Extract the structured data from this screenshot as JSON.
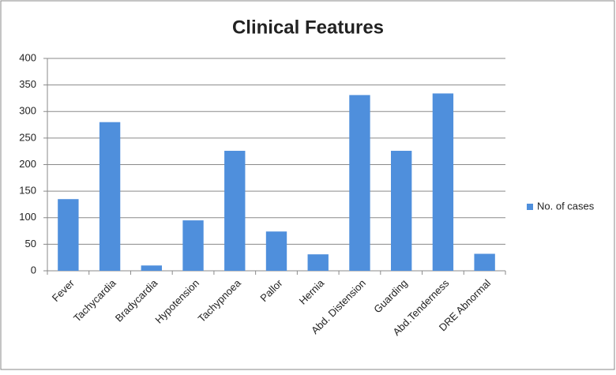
{
  "chart_data": {
    "type": "bar",
    "title": "Clinical Features",
    "categories": [
      "Fever",
      "Tachycardia",
      "Bradycardia",
      "Hypotension",
      "Tachypnoea",
      "Pallor",
      "Hernia",
      "Abd. Distension",
      "Guarding",
      "Abd.Tenderness",
      "DRE Abnormal"
    ],
    "series": [
      {
        "name": "No. of cases",
        "color": "#4f8fdc",
        "values": [
          135,
          280,
          10,
          95,
          226,
          74,
          31,
          331,
          226,
          334,
          32
        ]
      }
    ],
    "ylim": [
      0,
      400
    ],
    "yticks": [
      0,
      50,
      100,
      150,
      200,
      250,
      300,
      350,
      400
    ],
    "grid": true,
    "legend": "right"
  }
}
